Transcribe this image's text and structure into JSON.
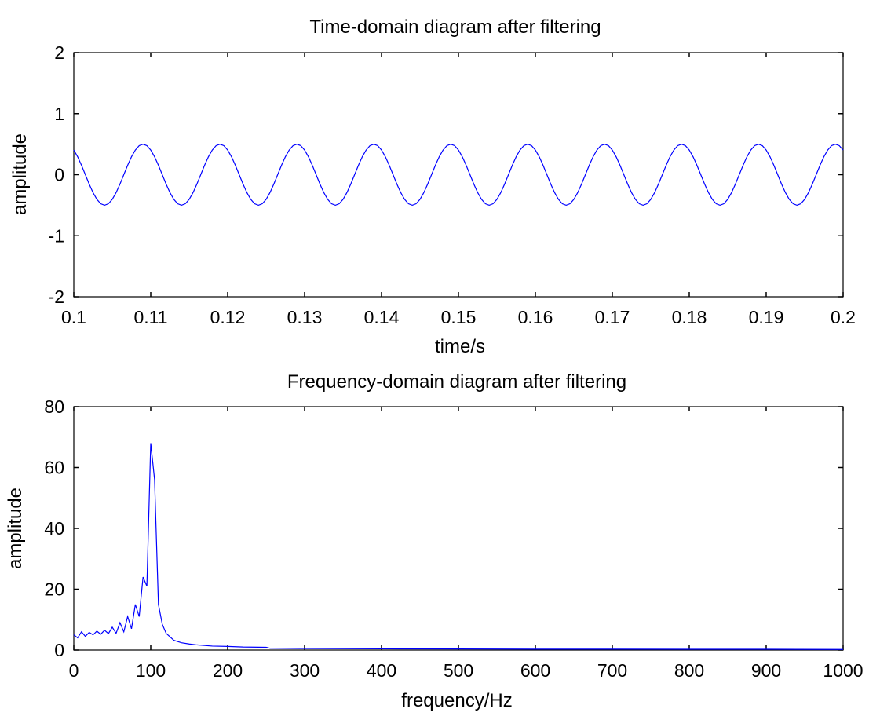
{
  "chart_data": [
    {
      "type": "line",
      "title": "Time-domain diagram after filtering",
      "xlabel": "time/s",
      "ylabel": "amplitude",
      "xlim": [
        0.1,
        0.2
      ],
      "ylim": [
        -2,
        2
      ],
      "xticks": [
        0.1,
        0.11,
        0.12,
        0.13,
        0.14,
        0.15,
        0.16,
        0.17,
        0.18,
        0.19,
        0.2
      ],
      "xtick_labels": [
        "0.1",
        "0.11",
        "0.12",
        "0.13",
        "0.14",
        "0.15",
        "0.16",
        "0.17",
        "0.18",
        "0.19",
        "0.2"
      ],
      "yticks": [
        -2,
        -1,
        0,
        1,
        2
      ],
      "ytick_labels": [
        "-2",
        "-1",
        "0",
        "1",
        "2"
      ],
      "grid": false,
      "line_color": "#0000ff",
      "series": [
        {
          "x": [
            0.1,
            0.1005,
            0.101,
            0.1015,
            0.102,
            0.1025,
            0.103,
            0.1035,
            0.104,
            0.1045,
            0.105,
            0.1055,
            0.106,
            0.1065,
            0.107,
            0.1075,
            0.108,
            0.1085,
            0.109,
            0.1095,
            0.11,
            0.1105,
            0.111,
            0.1115,
            0.112,
            0.1125,
            0.113,
            0.1135,
            0.114,
            0.1145,
            0.115,
            0.1155,
            0.116,
            0.1165,
            0.117,
            0.1175,
            0.118,
            0.1185,
            0.119,
            0.1195,
            0.12,
            0.1205,
            0.121,
            0.1215,
            0.122,
            0.1225,
            0.123,
            0.1235,
            0.124,
            0.1245,
            0.125,
            0.1255,
            0.126,
            0.1265,
            0.127,
            0.1275,
            0.128,
            0.1285,
            0.129,
            0.1295,
            0.13,
            0.1305,
            0.131,
            0.1315,
            0.132,
            0.1325,
            0.133,
            0.1335,
            0.134,
            0.1345,
            0.135,
            0.1355,
            0.136,
            0.1365,
            0.137,
            0.1375,
            0.138,
            0.1385,
            0.139,
            0.1395,
            0.14,
            0.1405,
            0.141,
            0.1415,
            0.142,
            0.1425,
            0.143,
            0.1435,
            0.144,
            0.1445,
            0.145,
            0.1455,
            0.146,
            0.1465,
            0.147,
            0.1475,
            0.148,
            0.1485,
            0.149,
            0.1495,
            0.15,
            0.1505,
            0.151,
            0.1515,
            0.152,
            0.1525,
            0.153,
            0.1535,
            0.154,
            0.1545,
            0.155,
            0.1555,
            0.156,
            0.1565,
            0.157,
            0.1575,
            0.158,
            0.1585,
            0.159,
            0.1595,
            0.16,
            0.1605,
            0.161,
            0.1615,
            0.162,
            0.1625,
            0.163,
            0.1635,
            0.164,
            0.1645,
            0.165,
            0.1655,
            0.166,
            0.1665,
            0.167,
            0.1675,
            0.168,
            0.1685,
            0.169,
            0.1695,
            0.17,
            0.1705,
            0.171,
            0.1715,
            0.172,
            0.1725,
            0.173,
            0.1735,
            0.174,
            0.1745,
            0.175,
            0.1755,
            0.176,
            0.1765,
            0.177,
            0.1775,
            0.178,
            0.1785,
            0.179,
            0.1795,
            0.18,
            0.1805,
            0.181,
            0.1815,
            0.182,
            0.1825,
            0.183,
            0.1835,
            0.184,
            0.1845,
            0.185,
            0.1855,
            0.186,
            0.1865,
            0.187,
            0.1875,
            0.188,
            0.1885,
            0.189,
            0.1895,
            0.19,
            0.1905,
            0.191,
            0.1915,
            0.192,
            0.1925,
            0.193,
            0.1935,
            0.194,
            0.1945,
            0.195,
            0.1955,
            0.196,
            0.1965,
            0.197,
            0.1975,
            0.198,
            0.1985,
            0.199,
            0.1995,
            0.2
          ],
          "y": [
            0.404,
            0.294,
            0.154,
            0.0,
            -0.154,
            -0.294,
            -0.404,
            -0.476,
            -0.5,
            -0.476,
            -0.404,
            -0.294,
            -0.154,
            0.0,
            0.154,
            0.294,
            0.404,
            0.476,
            0.5,
            0.476,
            0.404,
            0.294,
            0.154,
            0.0,
            -0.154,
            -0.294,
            -0.404,
            -0.476,
            -0.5,
            -0.476,
            -0.404,
            -0.294,
            -0.154,
            0.0,
            0.154,
            0.294,
            0.404,
            0.476,
            0.5,
            0.476,
            0.404,
            0.294,
            0.154,
            0.0,
            -0.154,
            -0.294,
            -0.404,
            -0.476,
            -0.5,
            -0.476,
            -0.404,
            -0.294,
            -0.154,
            0.0,
            0.154,
            0.294,
            0.404,
            0.476,
            0.5,
            0.476,
            0.404,
            0.294,
            0.154,
            0.0,
            -0.154,
            -0.294,
            -0.404,
            -0.476,
            -0.5,
            -0.476,
            -0.404,
            -0.294,
            -0.154,
            0.0,
            0.154,
            0.294,
            0.404,
            0.476,
            0.5,
            0.476,
            0.404,
            0.294,
            0.154,
            0.0,
            -0.154,
            -0.294,
            -0.404,
            -0.476,
            -0.5,
            -0.476,
            -0.404,
            -0.294,
            -0.154,
            0.0,
            0.154,
            0.294,
            0.404,
            0.476,
            0.5,
            0.476,
            0.404,
            0.294,
            0.154,
            0.0,
            -0.154,
            -0.294,
            -0.404,
            -0.476,
            -0.5,
            -0.476,
            -0.404,
            -0.294,
            -0.154,
            0.0,
            0.154,
            0.294,
            0.404,
            0.476,
            0.5,
            0.476,
            0.404,
            0.294,
            0.154,
            0.0,
            -0.154,
            -0.294,
            -0.404,
            -0.476,
            -0.5,
            -0.476,
            -0.404,
            -0.294,
            -0.154,
            0.0,
            0.154,
            0.294,
            0.404,
            0.476,
            0.5,
            0.476,
            0.404,
            0.294,
            0.154,
            0.0,
            -0.154,
            -0.294,
            -0.404,
            -0.476,
            -0.5,
            -0.476,
            -0.404,
            -0.294,
            -0.154,
            0.0,
            0.154,
            0.294,
            0.404,
            0.476,
            0.5,
            0.476,
            0.404,
            0.294,
            0.154,
            0.0,
            -0.154,
            -0.294,
            -0.404,
            -0.476,
            -0.5,
            -0.476,
            -0.404,
            -0.294,
            -0.154,
            0.0,
            0.154,
            0.294,
            0.404,
            0.476,
            0.5,
            0.476,
            0.404,
            0.294,
            0.154,
            0.0,
            -0.154,
            -0.294,
            -0.404,
            -0.476,
            -0.5,
            -0.476,
            -0.404,
            -0.294,
            -0.154,
            0.0,
            0.154,
            0.294,
            0.404,
            0.476,
            0.5,
            0.476,
            0.404
          ]
        }
      ]
    },
    {
      "type": "line",
      "title": "Frequency-domain diagram after filtering",
      "xlabel": "frequency/Hz",
      "ylabel": "amplitude",
      "xlim": [
        0,
        1000
      ],
      "ylim": [
        0,
        80
      ],
      "xticks": [
        0,
        100,
        200,
        300,
        400,
        500,
        600,
        700,
        800,
        900,
        1000
      ],
      "xtick_labels": [
        "0",
        "100",
        "200",
        "300",
        "400",
        "500",
        "600",
        "700",
        "800",
        "900",
        "1000"
      ],
      "yticks": [
        0,
        20,
        40,
        60,
        80
      ],
      "ytick_labels": [
        "0",
        "20",
        "40",
        "60",
        "80"
      ],
      "grid": false,
      "line_color": "#0000ff",
      "series": [
        {
          "x": [
            0,
            5,
            10,
            15,
            20,
            25,
            30,
            35,
            40,
            45,
            50,
            55,
            60,
            65,
            70,
            75,
            80,
            85,
            90,
            95,
            100,
            105,
            110,
            115,
            120,
            130,
            140,
            150,
            160,
            170,
            180,
            200,
            220,
            250,
            255,
            300,
            400,
            500,
            600,
            700,
            800,
            900,
            1000
          ],
          "y": [
            5.0,
            4.0,
            6.0,
            4.5,
            5.8,
            5.0,
            6.2,
            5.2,
            6.5,
            5.4,
            7.5,
            5.5,
            9.0,
            6.0,
            11.0,
            7.0,
            15.0,
            11.0,
            24.0,
            21.0,
            68.0,
            56.0,
            15.0,
            8.5,
            5.5,
            3.2,
            2.4,
            2.0,
            1.7,
            1.5,
            1.3,
            1.2,
            1.0,
            0.9,
            0.6,
            0.5,
            0.4,
            0.35,
            0.3,
            0.3,
            0.25,
            0.25,
            0.2
          ]
        }
      ]
    }
  ]
}
